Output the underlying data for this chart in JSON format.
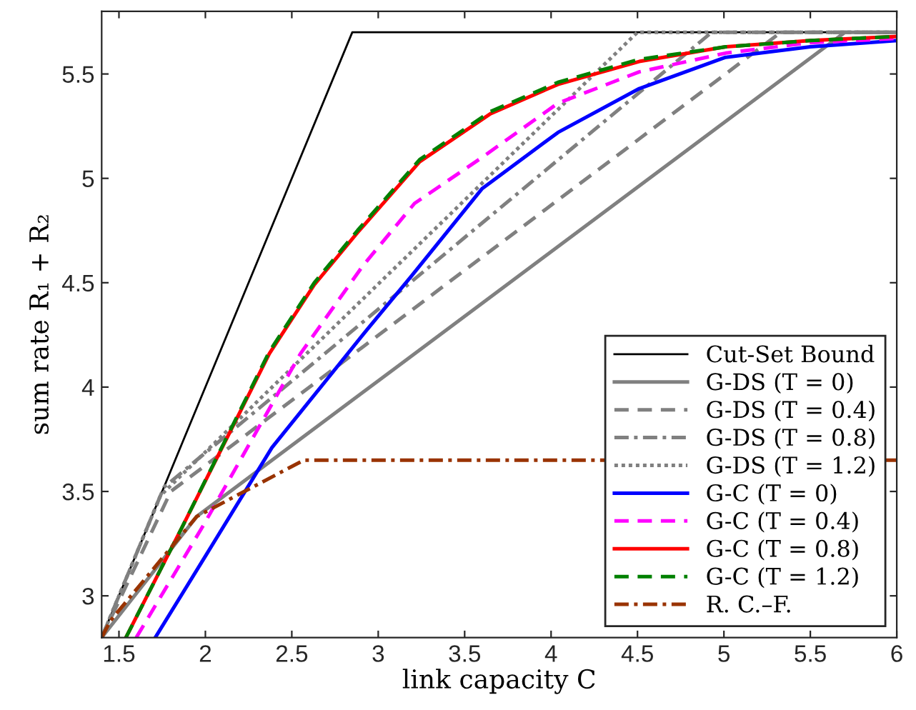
{
  "chart_data": {
    "type": "line",
    "xlabel": "link capacity C",
    "ylabel": "sum rate R₁ + R₂",
    "xlim": [
      1.4,
      6
    ],
    "ylim": [
      2.8,
      5.8
    ],
    "xticks": [
      1.5,
      2,
      2.5,
      3,
      3.5,
      4,
      4.5,
      5,
      5.5,
      6
    ],
    "yticks": [
      3,
      3.5,
      4,
      4.5,
      5,
      5.5
    ],
    "grid": false,
    "legend": "bottom right",
    "marker": "none",
    "series": [
      {
        "name": "Cut-Set Bound",
        "color": "#000000",
        "line_style": "solid",
        "x": [
          1.4,
          2.85,
          6
        ],
        "values": [
          2.8,
          5.7,
          5.7
        ]
      },
      {
        "name": "G-DS (T = 0)",
        "color": "#808080",
        "line_style": "solid",
        "x": [
          1.4,
          1.95,
          5.7,
          6
        ],
        "values": [
          2.8,
          3.38,
          5.7,
          5.7
        ]
      },
      {
        "name": "G-DS (T = 0.4)",
        "color": "#808080",
        "line_style": "dashed",
        "x": [
          1.4,
          1.8,
          5.33,
          6
        ],
        "values": [
          2.8,
          3.5,
          5.7,
          5.7
        ]
      },
      {
        "name": "G-DS (T = 0.8)",
        "color": "#808080",
        "line_style": "dashdot",
        "x": [
          1.4,
          1.76,
          4.93,
          6
        ],
        "values": [
          2.8,
          3.52,
          5.7,
          5.7
        ]
      },
      {
        "name": "G-DS (T = 1.2)",
        "color": "#808080",
        "line_style": "dotted",
        "x": [
          1.4,
          1.74,
          4.5,
          6
        ],
        "values": [
          2.8,
          3.48,
          5.7,
          5.7
        ]
      },
      {
        "name": "G-C (T = 0)",
        "color": "#0000ff",
        "line_style": "solid",
        "x": [
          1.71,
          2.0,
          2.385,
          2.94,
          3.19,
          3.6,
          4.04,
          4.51,
          5.01,
          5.5,
          6
        ],
        "values": [
          2.8,
          3.19,
          3.71,
          4.28,
          4.53,
          4.95,
          5.22,
          5.43,
          5.58,
          5.63,
          5.66
        ]
      },
      {
        "name": "G-C (T = 0.4)",
        "color": "#ff00ff",
        "line_style": "dashed",
        "x": [
          1.6,
          1.99,
          2.55,
          2.91,
          3.21,
          3.6,
          4.04,
          4.51,
          5.01,
          5.5,
          6
        ],
        "values": [
          2.8,
          3.34,
          4.16,
          4.58,
          4.88,
          5.1,
          5.36,
          5.51,
          5.6,
          5.65,
          5.67
        ]
      },
      {
        "name": "G-C (T = 0.8)",
        "color": "#ff0000",
        "line_style": "solid",
        "x": [
          1.54,
          1.86,
          2.37,
          2.63,
          2.88,
          3.24,
          3.65,
          4.04,
          4.51,
          5.01,
          5.5,
          6
        ],
        "values": [
          2.8,
          3.32,
          4.16,
          4.49,
          4.74,
          5.08,
          5.31,
          5.45,
          5.56,
          5.63,
          5.66,
          5.68
        ]
      },
      {
        "name": "G-C (T = 1.2)",
        "color": "#008000",
        "line_style": "dashed",
        "x": [
          1.54,
          1.86,
          2.37,
          2.63,
          2.88,
          3.24,
          3.65,
          4.04,
          4.51,
          5.01,
          5.5,
          6
        ],
        "values": [
          2.8,
          3.32,
          4.17,
          4.5,
          4.75,
          5.09,
          5.32,
          5.46,
          5.57,
          5.63,
          5.66,
          5.68
        ]
      },
      {
        "name": "R. C.–F.",
        "color": "#993300",
        "line_style": "dashdot",
        "x": [
          1.4,
          1.45,
          1.95,
          2.57,
          6
        ],
        "values": [
          2.8,
          2.88,
          3.38,
          3.65,
          3.65
        ]
      }
    ]
  }
}
